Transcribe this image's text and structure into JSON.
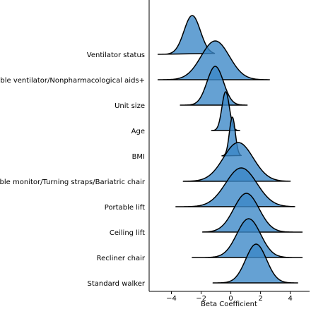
{
  "chart_data": {
    "type": "ridgeline",
    "xlabel": "Beta Coefficient",
    "xlim": [
      -5.5,
      5.3
    ],
    "xticks": [
      -4,
      -2,
      0,
      2,
      4
    ],
    "fill_color": "#3a87c7",
    "edge_color": "#000000",
    "series": [
      {
        "name": "Ventilator status",
        "mean": -2.6,
        "sd": 0.55,
        "range": [
          -4.9,
          -1.1
        ]
      },
      {
        "name": "Portable ventilator/Nonpharmacological aids+",
        "mean": -1.05,
        "sd": 0.95,
        "range": [
          -4.9,
          2.6
        ]
      },
      {
        "name": "Unit size",
        "mean": -1.05,
        "sd": 0.55,
        "range": [
          -3.4,
          1.1
        ]
      },
      {
        "name": "Age",
        "mean": -0.35,
        "sd": 0.25,
        "range": [
          -1.3,
          0.6
        ]
      },
      {
        "name": "BMI",
        "mean": 0.1,
        "sd": 0.2,
        "range": [
          -0.6,
          0.7
        ]
      },
      {
        "name": "Portable monitor/Turning straps/Bariatric chair",
        "mean": 0.5,
        "sd": 1.0,
        "range": [
          -3.2,
          4.0
        ]
      },
      {
        "name": "Portable lift",
        "mean": 0.7,
        "sd": 1.05,
        "range": [
          -3.7,
          4.3
        ]
      },
      {
        "name": "Ceiling lift",
        "mean": 1.05,
        "sd": 0.85,
        "range": [
          -1.9,
          4.8
        ]
      },
      {
        "name": "Recliner chair",
        "mean": 1.2,
        "sd": 0.8,
        "range": [
          -2.6,
          4.8
        ]
      },
      {
        "name": "Standard walker",
        "mean": 1.7,
        "sd": 0.7,
        "range": [
          -1.2,
          4.5
        ]
      }
    ]
  }
}
